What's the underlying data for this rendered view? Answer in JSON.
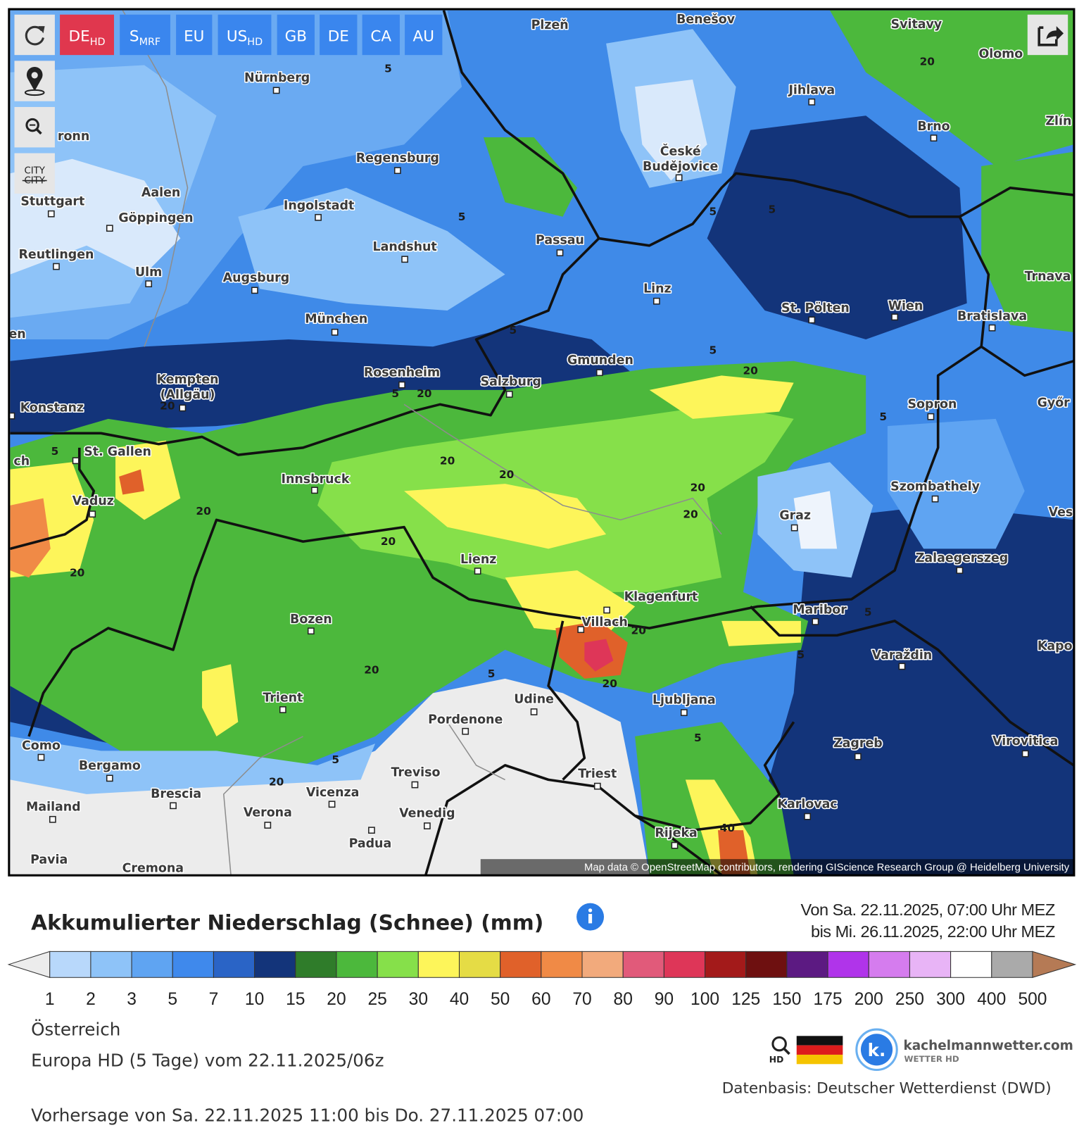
{
  "toolbar": {
    "buttons": [
      {
        "label": "DE",
        "sub": "HD"
      },
      {
        "label": "S",
        "sub": "MRF"
      },
      {
        "label": "EU"
      },
      {
        "label": "US",
        "sub": "HD"
      },
      {
        "label": "GB"
      },
      {
        "label": "DE"
      },
      {
        "label": "CA"
      },
      {
        "label": "AU"
      }
    ],
    "city_toggle": [
      "CITY",
      "CITY"
    ]
  },
  "map": {
    "cities": [
      {
        "name": "Plzeň"
      },
      {
        "name": "Benešov"
      },
      {
        "name": "Svitavy"
      },
      {
        "name": "Olomo"
      },
      {
        "name": "Nürnberg"
      },
      {
        "name": "Jihlava"
      },
      {
        "name": "Brno"
      },
      {
        "name": "Zlín"
      },
      {
        "name": "ronn"
      },
      {
        "name": "Regensburg"
      },
      {
        "lines": [
          "České",
          "Budějovice"
        ]
      },
      {
        "name": "Aalen"
      },
      {
        "name": "Stuttgart"
      },
      {
        "name": "Ingolstadt"
      },
      {
        "name": "Göppingen"
      },
      {
        "name": "Passau"
      },
      {
        "name": "Landshut"
      },
      {
        "name": "Reutlingen"
      },
      {
        "name": "Ulm"
      },
      {
        "name": "Augsburg"
      },
      {
        "name": "Trnava"
      },
      {
        "name": "Linz"
      },
      {
        "name": "Wien"
      },
      {
        "name": "St. Pölten"
      },
      {
        "name": "Bratislava"
      },
      {
        "name": "München"
      },
      {
        "name": "en"
      },
      {
        "name": "Gmunden"
      },
      {
        "name": "Rosenheim"
      },
      {
        "lines": [
          "Kempten",
          "(Allgäu)"
        ]
      },
      {
        "name": "Salzburg"
      },
      {
        "name": "Sopron"
      },
      {
        "name": "Konstanz"
      },
      {
        "name": "Győr"
      },
      {
        "name": "St. Gallen"
      },
      {
        "name": "ch"
      },
      {
        "name": "Innsbruck"
      },
      {
        "name": "Szombathely"
      },
      {
        "name": "Vaduz"
      },
      {
        "name": "Ves"
      },
      {
        "name": "Graz"
      },
      {
        "name": "Lienz"
      },
      {
        "name": "Zalaegerszeg"
      },
      {
        "name": "Klagenfurt"
      },
      {
        "name": "Maribor"
      },
      {
        "name": "Bozen"
      },
      {
        "name": "Villach"
      },
      {
        "name": "Kapo"
      },
      {
        "name": "Varaždin"
      },
      {
        "name": "Trient"
      },
      {
        "name": "Ljubljana"
      },
      {
        "name": "Udine"
      },
      {
        "name": "Pordenone"
      },
      {
        "name": "Zagreb"
      },
      {
        "name": "Virovitica"
      },
      {
        "name": "Como"
      },
      {
        "name": "Bergamo"
      },
      {
        "name": "Treviso"
      },
      {
        "name": "Triest"
      },
      {
        "name": "Vicenza"
      },
      {
        "name": "Brescia"
      },
      {
        "name": "Karlovac"
      },
      {
        "name": "Mailand"
      },
      {
        "name": "Verona"
      },
      {
        "name": "Venedig"
      },
      {
        "name": "Padua"
      },
      {
        "name": "Rijeka"
      },
      {
        "name": "Pavia"
      },
      {
        "name": "Cremona"
      }
    ],
    "contours": [
      5,
      5,
      5,
      5,
      5,
      5,
      5,
      5,
      5,
      5,
      5,
      5,
      5,
      5,
      20,
      20,
      20,
      20,
      20,
      20,
      20,
      20,
      20,
      20,
      20,
      20,
      20,
      20,
      20,
      40
    ],
    "attribution": "Map data © OpenStreetMap contributors, rendering GIScience Research Group @ Heidelberg University"
  },
  "legend": {
    "title": "Akkumulierter Niederschlag (Schnee) (mm)",
    "period": [
      "Von Sa. 22.11.2025, 07:00 Uhr MEZ",
      "bis Mi. 26.11.2025, 22:00 Uhr MEZ"
    ],
    "colors": [
      "#ececec",
      "#b8d8fb",
      "#8ec3f8",
      "#5fa4f2",
      "#3f89ec",
      "#2a64c6",
      "#13347a",
      "#2f7c2a",
      "#4cb83c",
      "#86e04a",
      "#fdf55a",
      "#e5dc45",
      "#e0612a",
      "#f08a46",
      "#f2aa7c",
      "#e15a7a",
      "#de3658",
      "#a31a1a",
      "#6e1010",
      "#5c1a82",
      "#b034ea",
      "#d57cee",
      "#e8b4f6",
      "#ffffff",
      "#aaaaaa",
      "#b57a55"
    ],
    "ticks": [
      1,
      2,
      3,
      5,
      7,
      10,
      15,
      20,
      25,
      30,
      40,
      50,
      60,
      70,
      80,
      90,
      100,
      125,
      150,
      175,
      200,
      250,
      300,
      400,
      500
    ]
  },
  "footer": {
    "region": "Österreich",
    "model": "Europa HD (5 Tage) vom 22.11.2025/06z",
    "forecast": "Vorhersage von Sa. 22.11.2025 11:00 bis Do. 27.11.2025 07:00",
    "source": "Datenbasis: Deutscher Wetterdienst (DWD)"
  },
  "logo": {
    "hd": "HD",
    "letter": "k.",
    "name": "kachelmannwetter.com",
    "tagline": "WETTER HD"
  }
}
